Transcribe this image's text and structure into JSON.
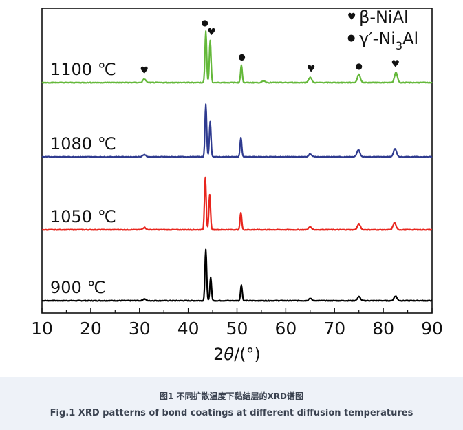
{
  "chart_data": {
    "type": "line",
    "xlabel_prefix": "2",
    "xlabel_theta": "θ",
    "xlabel_suffix": "/(°)",
    "xlim": [
      10,
      90
    ],
    "xticks": [
      10,
      20,
      30,
      40,
      50,
      60,
      70,
      80,
      90
    ],
    "y_ticks_shown": false,
    "legend": {
      "position": "top-right",
      "entries": [
        {
          "symbol": "♥",
          "label": "β-NiAl"
        },
        {
          "symbol": "●",
          "label_main": "γ′-Ni",
          "label_sub": "3",
          "label_tail": "Al"
        }
      ]
    },
    "series": [
      {
        "name": "900 ℃",
        "color": "#000000",
        "peaks": [
          {
            "x": 43.6,
            "h": 0.88
          },
          {
            "x": 44.6,
            "h": 0.4
          },
          {
            "x": 50.9,
            "h": 0.27
          },
          {
            "x": 31.0,
            "h": 0.03
          },
          {
            "x": 65.0,
            "h": 0.04
          },
          {
            "x": 75.0,
            "h": 0.07
          },
          {
            "x": 82.5,
            "h": 0.08
          }
        ]
      },
      {
        "name": "1050 ℃",
        "color": "#e8251d",
        "peaks": [
          {
            "x": 43.5,
            "h": 0.9
          },
          {
            "x": 44.4,
            "h": 0.6
          },
          {
            "x": 50.8,
            "h": 0.3
          },
          {
            "x": 31.0,
            "h": 0.04
          },
          {
            "x": 65.0,
            "h": 0.05
          },
          {
            "x": 75.0,
            "h": 0.1
          },
          {
            "x": 82.3,
            "h": 0.12
          }
        ]
      },
      {
        "name": "1080 ℃",
        "color": "#2e3a8f",
        "peaks": [
          {
            "x": 43.6,
            "h": 0.9
          },
          {
            "x": 44.5,
            "h": 0.6
          },
          {
            "x": 50.8,
            "h": 0.33
          },
          {
            "x": 31.0,
            "h": 0.04
          },
          {
            "x": 65.0,
            "h": 0.05
          },
          {
            "x": 74.9,
            "h": 0.12
          },
          {
            "x": 82.4,
            "h": 0.14
          }
        ]
      },
      {
        "name": "1100 ℃",
        "color": "#64b83a",
        "peaks": [
          {
            "x": 43.6,
            "h": 0.88
          },
          {
            "x": 44.5,
            "h": 0.72
          },
          {
            "x": 50.9,
            "h": 0.3
          },
          {
            "x": 31.0,
            "h": 0.06
          },
          {
            "x": 65.0,
            "h": 0.09
          },
          {
            "x": 75.0,
            "h": 0.14
          },
          {
            "x": 82.6,
            "h": 0.17
          },
          {
            "x": 55.5,
            "h": 0.03
          }
        ],
        "markers": [
          {
            "x": 31.0,
            "symbol": "♥"
          },
          {
            "x": 43.4,
            "symbol": "●"
          },
          {
            "x": 44.8,
            "symbol": "♥"
          },
          {
            "x": 51.0,
            "symbol": "●"
          },
          {
            "x": 65.2,
            "symbol": "♥"
          },
          {
            "x": 75.0,
            "symbol": "●"
          },
          {
            "x": 82.5,
            "symbol": "♥"
          }
        ]
      }
    ]
  },
  "caption": {
    "cn": "图1 不同扩散温度下黏结层的XRD谱图",
    "en": "Fig.1 XRD patterns of bond coatings at different diffusion temperatures"
  }
}
